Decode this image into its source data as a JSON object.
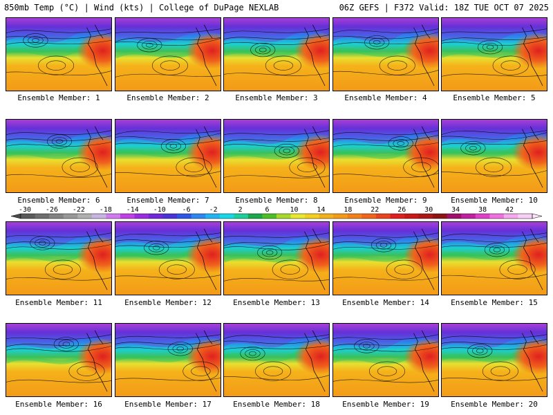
{
  "header": {
    "left": "850mb Temp (°C) | Wind (kts) | College of DuPage NEXLAB",
    "right": "06Z GEFS | F372 Valid: 18Z TUE OCT 07 2025"
  },
  "members": [
    {
      "label": "Ensemble Member: 1"
    },
    {
      "label": "Ensemble Member: 2"
    },
    {
      "label": "Ensemble Member: 3"
    },
    {
      "label": "Ensemble Member: 4"
    },
    {
      "label": "Ensemble Member: 5"
    },
    {
      "label": "Ensemble Member: 6"
    },
    {
      "label": "Ensemble Member: 7"
    },
    {
      "label": "Ensemble Member: 8"
    },
    {
      "label": "Ensemble Member: 9"
    },
    {
      "label": "Ensemble Member: 10"
    },
    {
      "label": "Ensemble Member: 11"
    },
    {
      "label": "Ensemble Member: 12"
    },
    {
      "label": "Ensemble Member: 13"
    },
    {
      "label": "Ensemble Member: 14"
    },
    {
      "label": "Ensemble Member: 15"
    },
    {
      "label": "Ensemble Member: 16"
    },
    {
      "label": "Ensemble Member: 17"
    },
    {
      "label": "Ensemble Member: 18"
    },
    {
      "label": "Ensemble Member: 19"
    },
    {
      "label": "Ensemble Member: 20"
    }
  ],
  "colorbar": {
    "tick_labels": [
      "-30",
      "-26",
      "-22",
      "-18",
      "-14",
      "-10",
      "-6",
      "-2",
      "2",
      "6",
      "10",
      "14",
      "18",
      "22",
      "26",
      "30",
      "34",
      "38",
      "42"
    ],
    "colors": [
      "#5a5a5a",
      "#6e6e6e",
      "#838383",
      "#989898",
      "#b0b0b0",
      "#c8b4e0",
      "#d07cf0",
      "#c040e8",
      "#9a2be0",
      "#7028d8",
      "#4a33d6",
      "#2e55e6",
      "#2f86f0",
      "#22b4f2",
      "#18d8e8",
      "#1ccf9c",
      "#1aa84a",
      "#4cbf26",
      "#a8d82a",
      "#e8e830",
      "#f2d020",
      "#f2b01a",
      "#f39a18",
      "#f2801a",
      "#f0641c",
      "#e84420",
      "#e02020",
      "#c81818",
      "#aa1818",
      "#8c1414",
      "#a0106a",
      "#c020a0",
      "#e040c8",
      "#f070e0",
      "#f6a8ee",
      "#f8d0f6"
    ]
  }
}
